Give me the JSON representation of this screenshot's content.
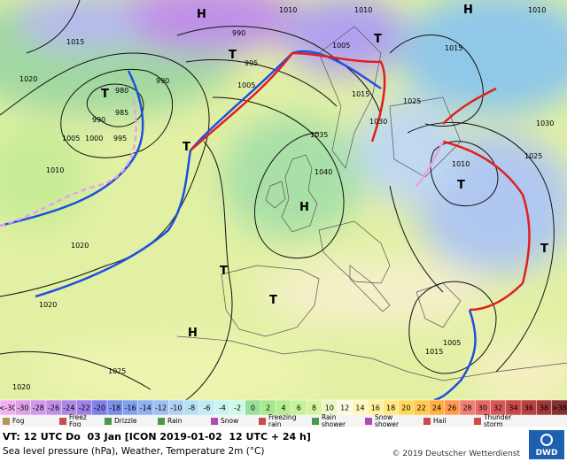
{
  "map": {
    "pressure_labels": [
      "1010",
      "1010",
      "1015",
      "990",
      "995",
      "1005",
      "1020",
      "980",
      "985",
      "990",
      "990",
      "995",
      "1005",
      "1000",
      "1005",
      "1015",
      "1030",
      "1025",
      "1035",
      "1040",
      "1010",
      "1020",
      "1020",
      "1025",
      "1020",
      "1030",
      "1025",
      "1010",
      "1015",
      "1015",
      "1005",
      "1010"
    ],
    "centers": [
      "H",
      "H",
      "H",
      "H",
      "T",
      "T",
      "T",
      "T",
      "T",
      "T",
      "T",
      "T"
    ]
  },
  "legend": {
    "temperature_scale": [
      "<-30",
      -30,
      -28,
      -26,
      -24,
      -22,
      -20,
      -18,
      -16,
      -14,
      -12,
      -10,
      -8,
      -6,
      -4,
      -2,
      0,
      2,
      4,
      6,
      8,
      10,
      12,
      14,
      16,
      18,
      20,
      22,
      24,
      26,
      28,
      30,
      32,
      34,
      36,
      38,
      ">38"
    ],
    "colors": [
      "#f0b0f0",
      "#e0a0e8",
      "#d098e8",
      "#c090e8",
      "#b088e8",
      "#a080e8",
      "#8080e8",
      "#7890e8",
      "#80a0f0",
      "#90b0f0",
      "#a0c0f4",
      "#b0d0f4",
      "#b8e0f4",
      "#c0ecf4",
      "#c8f4f0",
      "#d0f8e8",
      "#98e098",
      "#a8e890",
      "#b8ee90",
      "#c8f298",
      "#d8f4a0",
      "#eaf8c8",
      "#fbfbe0",
      "#fff6c0",
      "#fff0a0",
      "#ffe880",
      "#ffd860",
      "#ffc850",
      "#ffb040",
      "#ff9850",
      "#f08070",
      "#e86868",
      "#d85858",
      "#c84848",
      "#b84040",
      "#a03838",
      "#883030"
    ],
    "weather": [
      "Fog",
      "Freez Fog",
      "Drizzle",
      "Rain",
      "Snow",
      "Freezing rain",
      "Rain shower",
      "Snow shower",
      "Hail",
      "Thunder storm"
    ]
  },
  "footer": {
    "valid_time": "VT: 12 UTC Do  03 Jan [ICON 2019-01-02  12 UTC + 24 h]",
    "description": "Sea level pressure (hPa), Weather, Temperature 2m (°C)",
    "copyright": "© 2019 Deutscher Wetterdienst",
    "logo": "DWD"
  }
}
